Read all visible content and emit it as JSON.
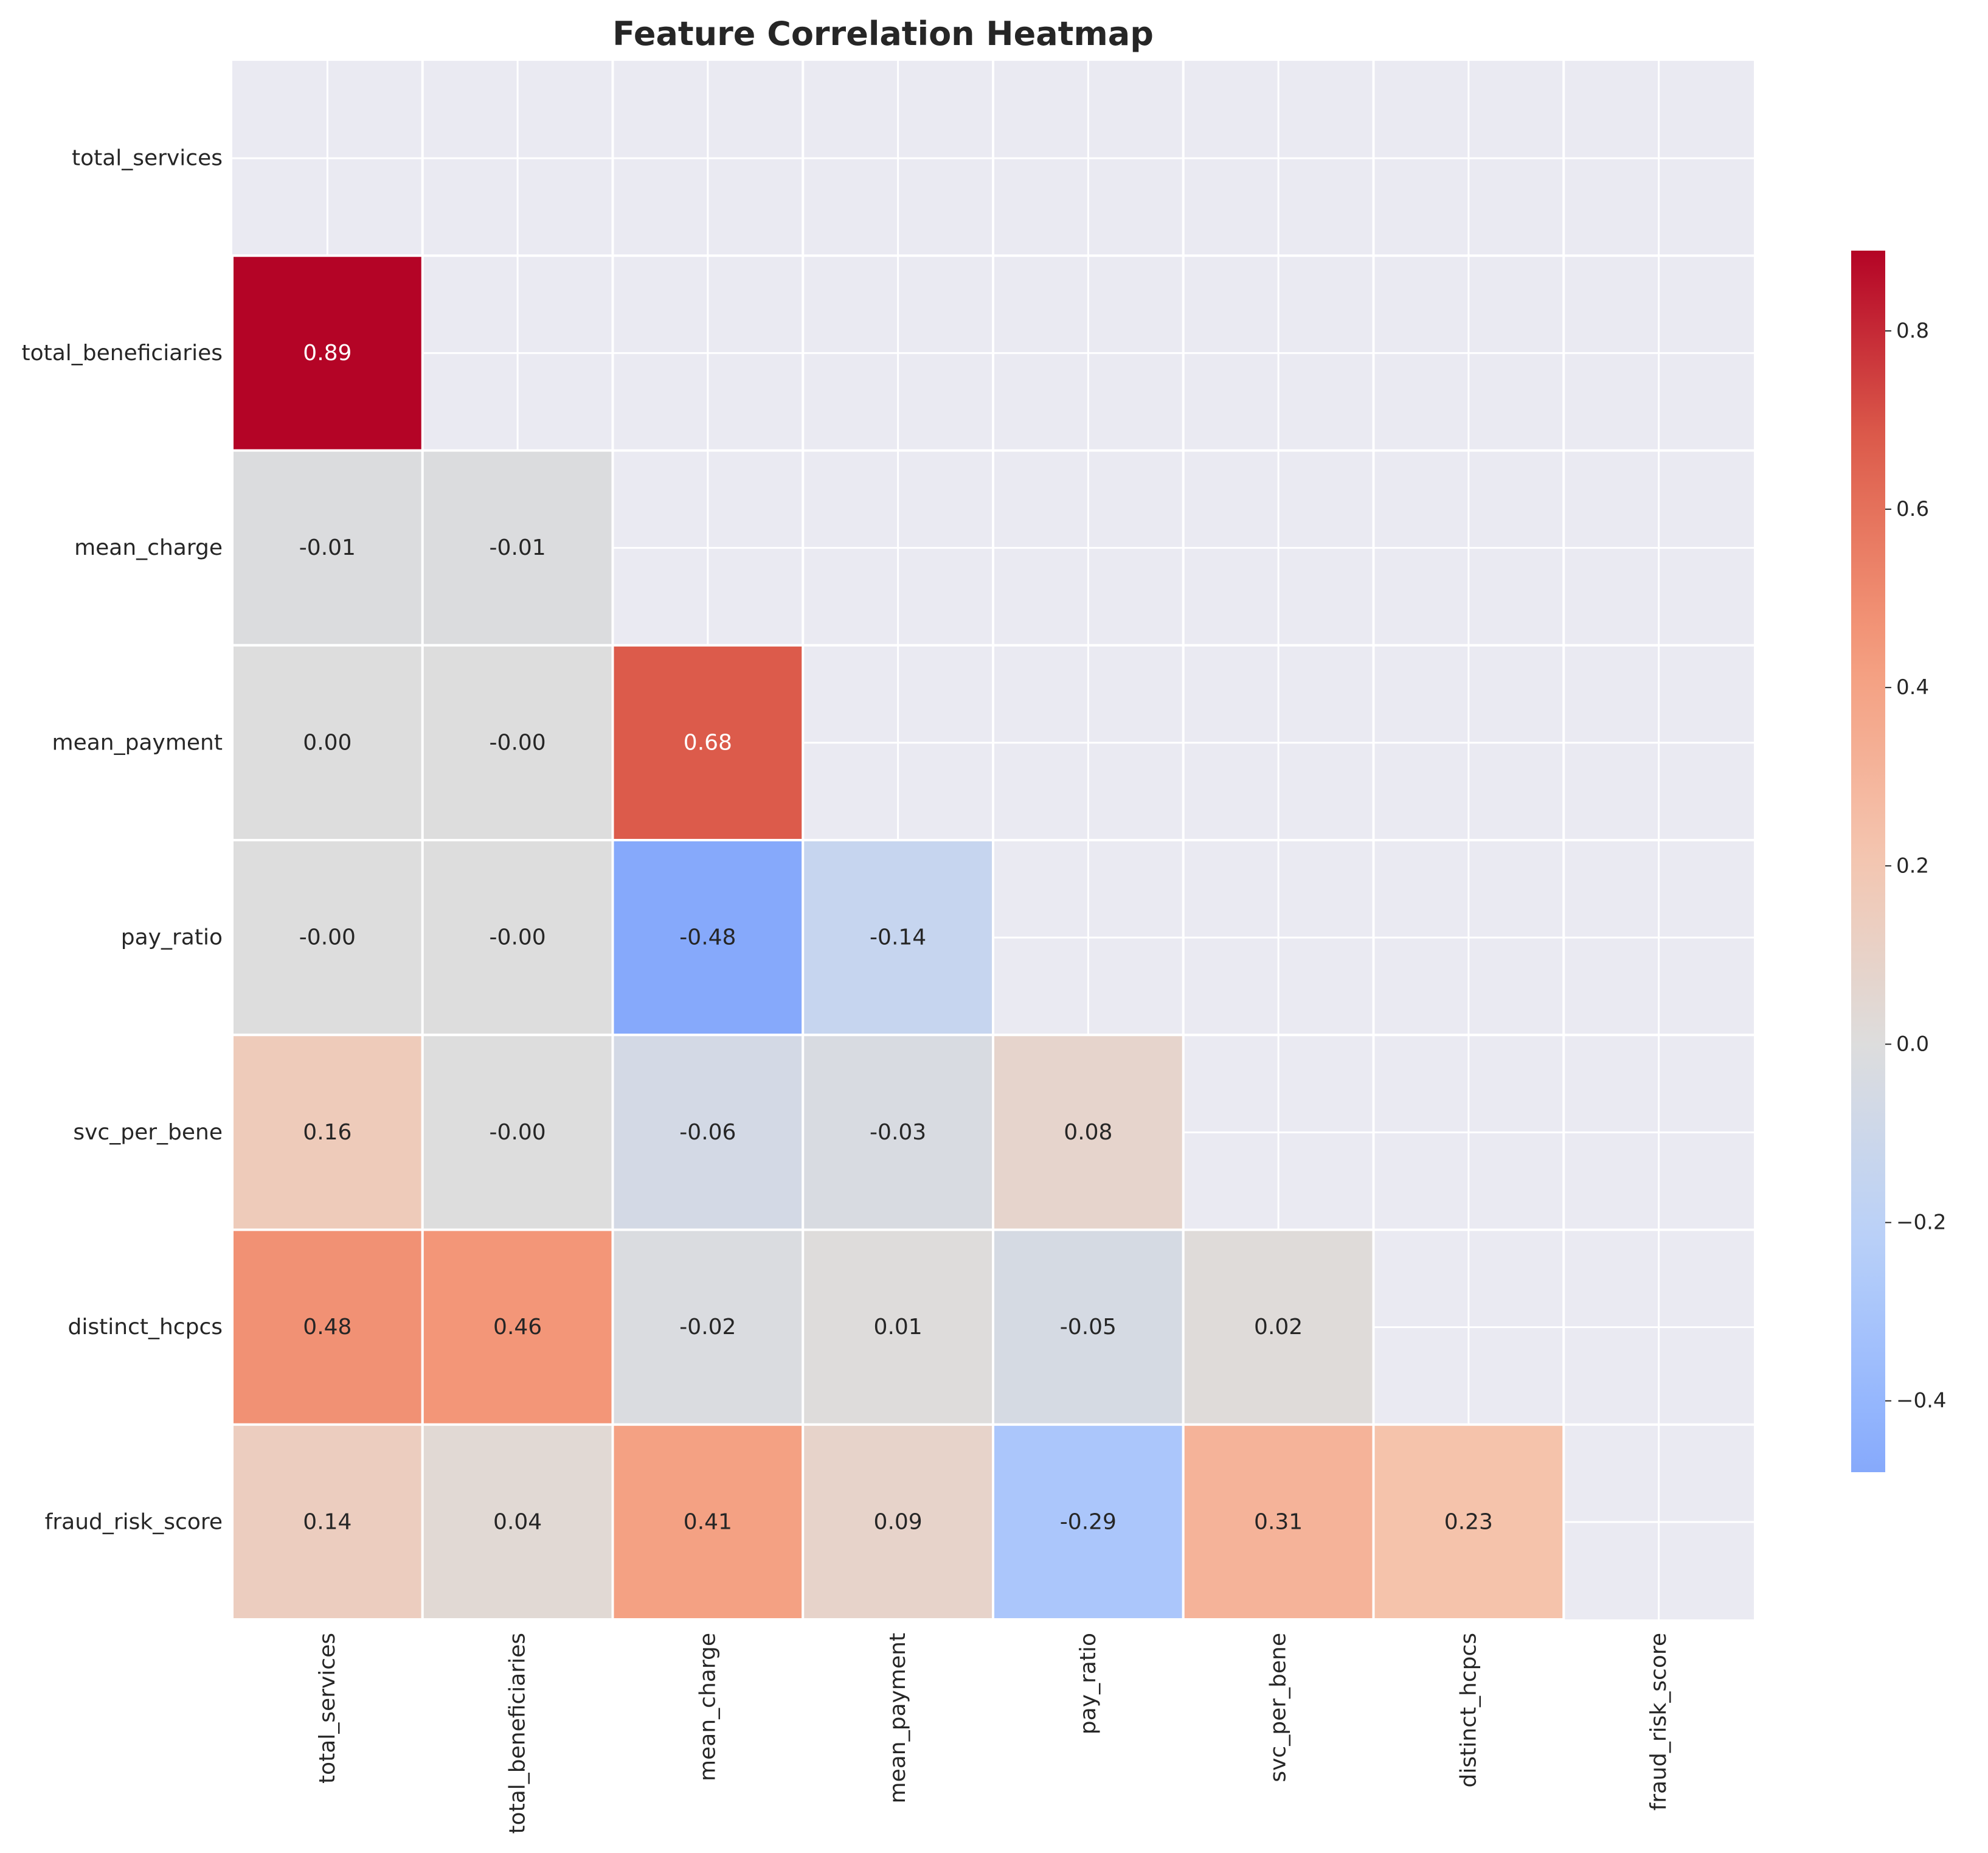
{
  "chart_data": {
    "type": "heatmap",
    "title": "Feature Correlation Heatmap",
    "xlabel": "",
    "ylabel": "",
    "features": [
      "total_services",
      "total_beneficiaries",
      "mean_charge",
      "mean_payment",
      "pay_ratio",
      "svc_per_bene",
      "distinct_hcpcs",
      "fraud_risk_score"
    ],
    "mask": "upper-triangle-including-diagonal",
    "cells": [
      {
        "row": 1,
        "col": 0,
        "value": 0.89,
        "label": "0.89"
      },
      {
        "row": 2,
        "col": 0,
        "value": -0.01,
        "label": "-0.01"
      },
      {
        "row": 2,
        "col": 1,
        "value": -0.01,
        "label": "-0.01"
      },
      {
        "row": 3,
        "col": 0,
        "value": 0.0,
        "label": "0.00"
      },
      {
        "row": 3,
        "col": 1,
        "value": -0.0,
        "label": "-0.00"
      },
      {
        "row": 3,
        "col": 2,
        "value": 0.68,
        "label": "0.68"
      },
      {
        "row": 4,
        "col": 0,
        "value": -0.0,
        "label": "-0.00"
      },
      {
        "row": 4,
        "col": 1,
        "value": -0.0,
        "label": "-0.00"
      },
      {
        "row": 4,
        "col": 2,
        "value": -0.48,
        "label": "-0.48"
      },
      {
        "row": 4,
        "col": 3,
        "value": -0.14,
        "label": "-0.14"
      },
      {
        "row": 5,
        "col": 0,
        "value": 0.16,
        "label": "0.16"
      },
      {
        "row": 5,
        "col": 1,
        "value": -0.0,
        "label": "-0.00"
      },
      {
        "row": 5,
        "col": 2,
        "value": -0.06,
        "label": "-0.06"
      },
      {
        "row": 5,
        "col": 3,
        "value": -0.03,
        "label": "-0.03"
      },
      {
        "row": 5,
        "col": 4,
        "value": 0.08,
        "label": "0.08"
      },
      {
        "row": 6,
        "col": 0,
        "value": 0.48,
        "label": "0.48"
      },
      {
        "row": 6,
        "col": 1,
        "value": 0.46,
        "label": "0.46"
      },
      {
        "row": 6,
        "col": 2,
        "value": -0.02,
        "label": "-0.02"
      },
      {
        "row": 6,
        "col": 3,
        "value": 0.01,
        "label": "0.01"
      },
      {
        "row": 6,
        "col": 4,
        "value": -0.05,
        "label": "-0.05"
      },
      {
        "row": 6,
        "col": 5,
        "value": 0.02,
        "label": "0.02"
      },
      {
        "row": 7,
        "col": 0,
        "value": 0.14,
        "label": "0.14"
      },
      {
        "row": 7,
        "col": 1,
        "value": 0.04,
        "label": "0.04"
      },
      {
        "row": 7,
        "col": 2,
        "value": 0.41,
        "label": "0.41"
      },
      {
        "row": 7,
        "col": 3,
        "value": 0.09,
        "label": "0.09"
      },
      {
        "row": 7,
        "col": 4,
        "value": -0.29,
        "label": "-0.29"
      },
      {
        "row": 7,
        "col": 5,
        "value": 0.31,
        "label": "0.31"
      },
      {
        "row": 7,
        "col": 6,
        "value": 0.23,
        "label": "0.23"
      }
    ],
    "colorbar": {
      "colormap": "coolwarm",
      "center": 0,
      "vmin": -0.48,
      "vmax": 0.89,
      "ticks": [
        -0.4,
        -0.2,
        0.0,
        0.2,
        0.4,
        0.6,
        0.8
      ],
      "tick_labels": [
        "−0.4",
        "−0.2",
        "0.0",
        "0.2",
        "0.4",
        "0.6",
        "0.8"
      ]
    },
    "grid": true,
    "colors": {
      "axes_background": "#eaeaf2",
      "grid_line": "#ffffff",
      "text_dark": "#262626",
      "text_light": "#ffffff"
    }
  }
}
